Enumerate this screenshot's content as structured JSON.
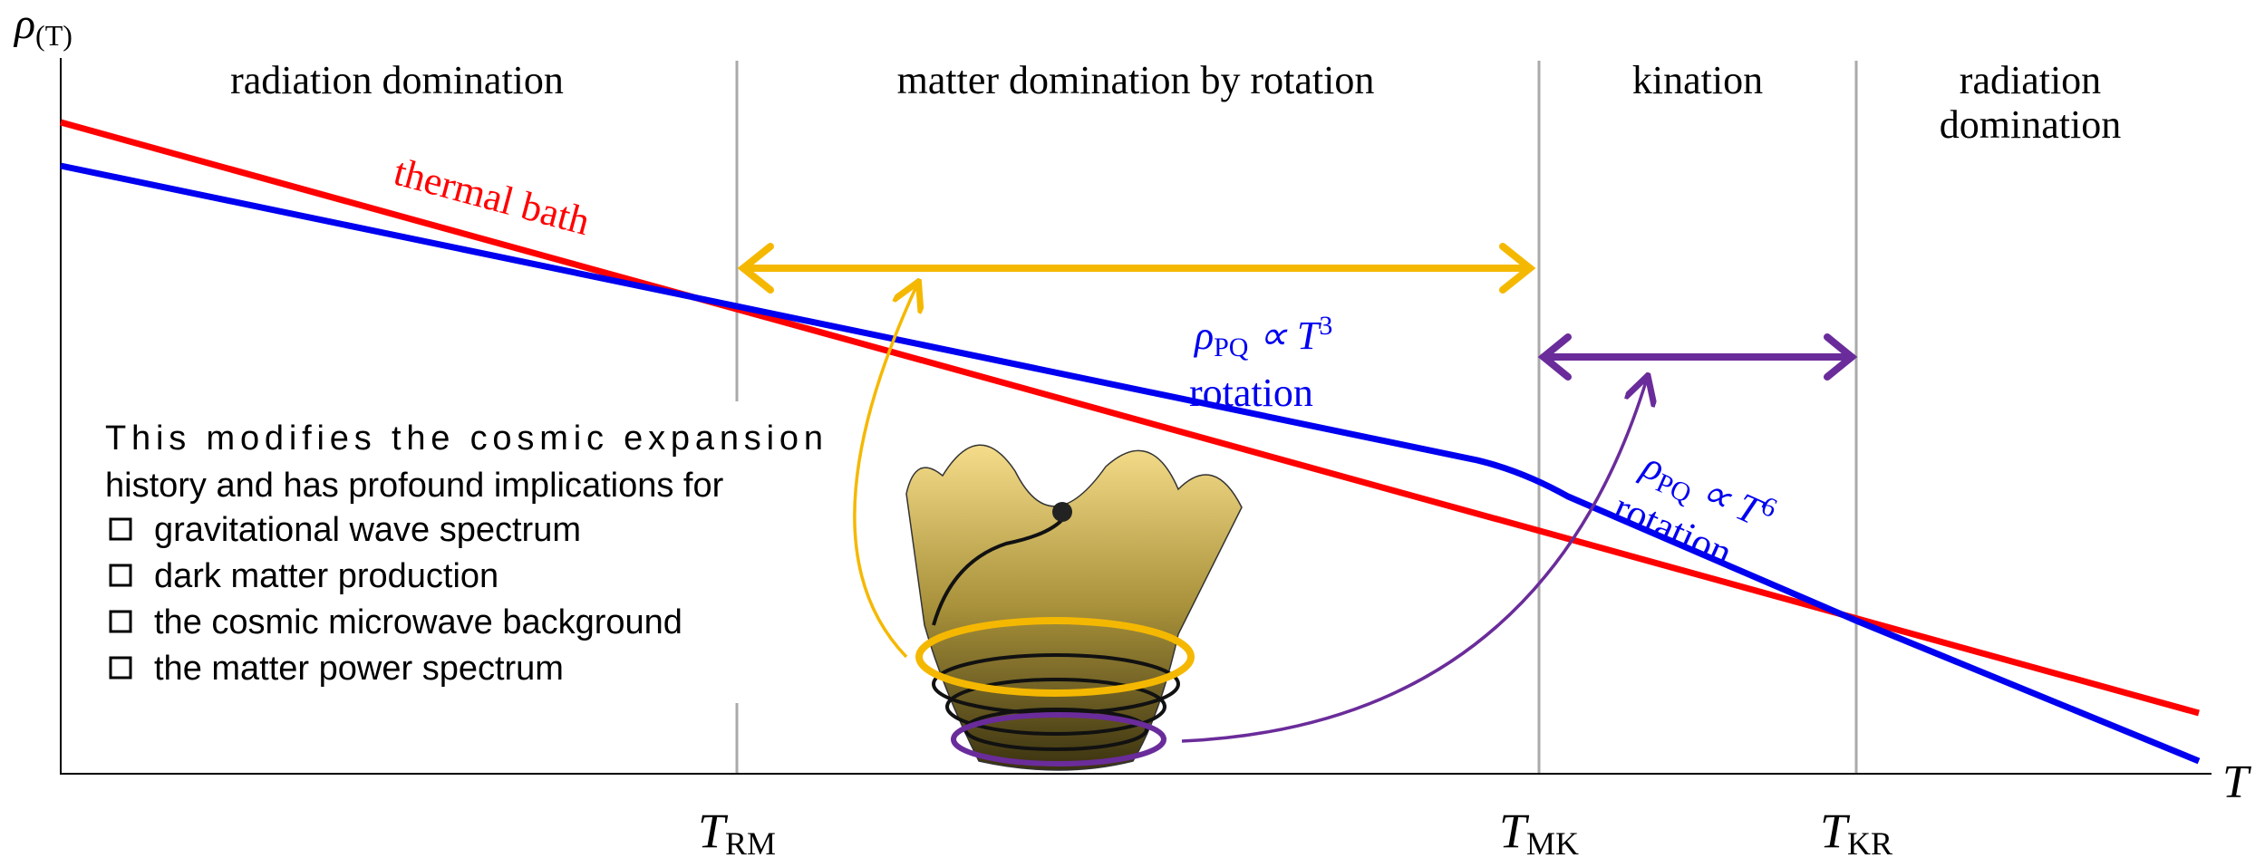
{
  "axes": {
    "y_label": {
      "symbol": "ρ",
      "sub": "(T)"
    },
    "x_label": "T"
  },
  "regions": [
    "radiation domination",
    "matter domination by rotation",
    "kination",
    [
      "radiation",
      "domination"
    ]
  ],
  "transitions": [
    {
      "symbol": "T",
      "sub": "RM"
    },
    {
      "symbol": "T",
      "sub": "MK"
    },
    {
      "symbol": "T",
      "sub": "KR"
    }
  ],
  "curves": {
    "thermal": "thermal bath",
    "rotation_mid": {
      "rho": "ρ",
      "sub": "PQ",
      "rel": " ∝ T",
      "power": "3",
      "name": "rotation"
    },
    "rotation_kin": {
      "rho": "ρ",
      "sub": "PQ",
      "rel": " ∝ T",
      "power": "6",
      "name": "rotation"
    }
  },
  "text": {
    "intro": [
      "This modifies the cosmic expansion",
      "history and has profound implications for"
    ],
    "bullets": [
      "gravitational wave spectrum",
      "dark matter production",
      "the cosmic microwave background",
      "the matter power spectrum"
    ]
  }
}
